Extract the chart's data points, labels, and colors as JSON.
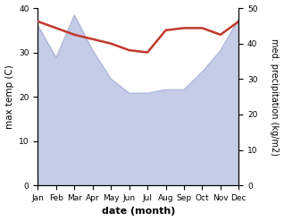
{
  "months": [
    "Jan",
    "Feb",
    "Mar",
    "Apr",
    "May",
    "Jun",
    "Jul",
    "Aug",
    "Sep",
    "Oct",
    "Nov",
    "Dec"
  ],
  "temp": [
    37,
    35.5,
    34,
    33,
    32,
    30.5,
    30,
    35,
    35.5,
    35.5,
    34,
    37
  ],
  "precip": [
    45,
    36,
    48,
    38,
    30,
    26,
    26,
    27,
    27,
    32,
    38,
    47
  ],
  "temp_color": "#c0392b",
  "precip_fill_color": "#c5cce8",
  "precip_line_color": "#aab4d8",
  "temp_ylim": [
    0,
    40
  ],
  "precip_ylim": [
    0,
    50
  ],
  "temp_yticks": [
    0,
    10,
    20,
    30,
    40
  ],
  "precip_yticks": [
    0,
    10,
    20,
    30,
    40,
    50
  ],
  "xlabel": "date (month)",
  "ylabel_left": "max temp (C)",
  "ylabel_right": "med. precipitation (kg/m2)"
}
